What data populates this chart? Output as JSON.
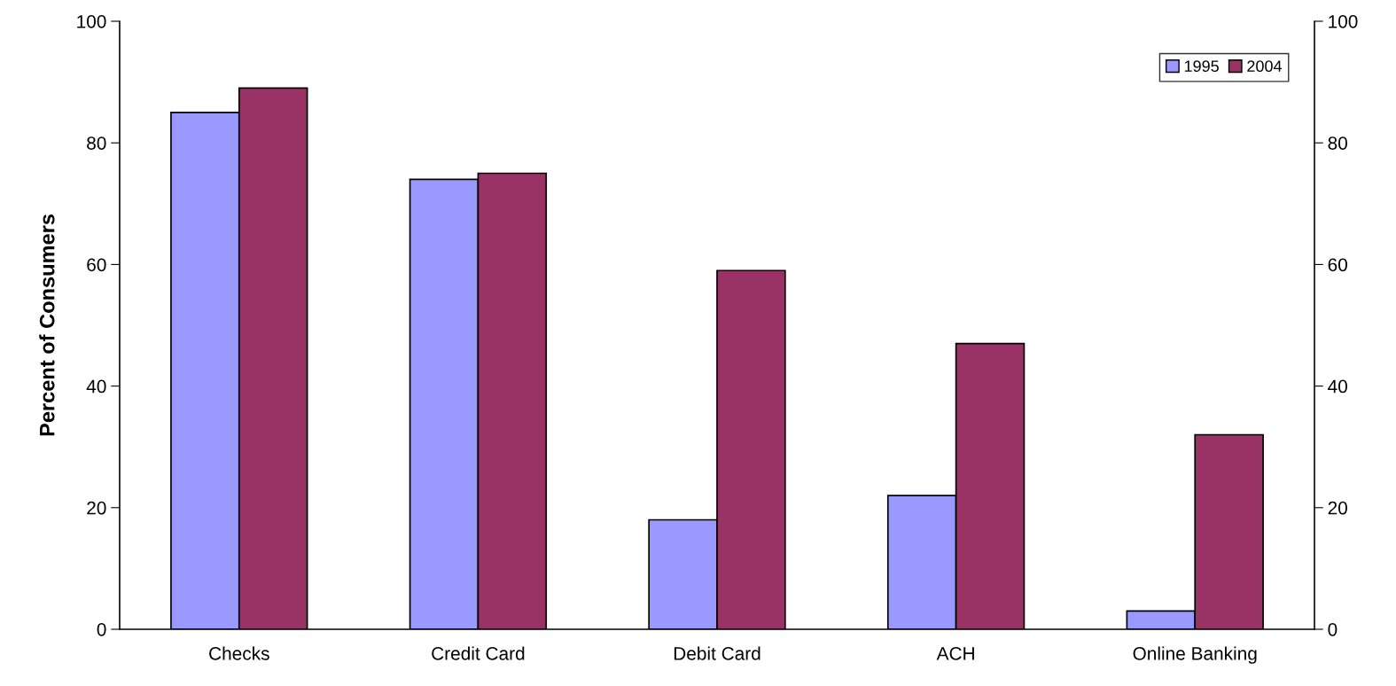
{
  "chart_data": {
    "type": "bar",
    "ylabel": "Percent of Consumers",
    "categories": [
      "Checks",
      "Credit Card",
      "Debit Card",
      "ACH",
      "Online Banking"
    ],
    "series": [
      {
        "name": "1995",
        "color": "#9999ff",
        "values": [
          85,
          74,
          18,
          22,
          3
        ]
      },
      {
        "name": "2004",
        "color": "#993366",
        "values": [
          89,
          75,
          59,
          47,
          32
        ]
      }
    ],
    "ylim": [
      0,
      100
    ],
    "yticks": [
      0,
      20,
      40,
      60,
      80,
      100
    ],
    "y2lim": [
      0,
      100
    ],
    "y2ticks": [
      0,
      20,
      40,
      60,
      80,
      100
    ],
    "grid": false,
    "legend": "top right"
  }
}
